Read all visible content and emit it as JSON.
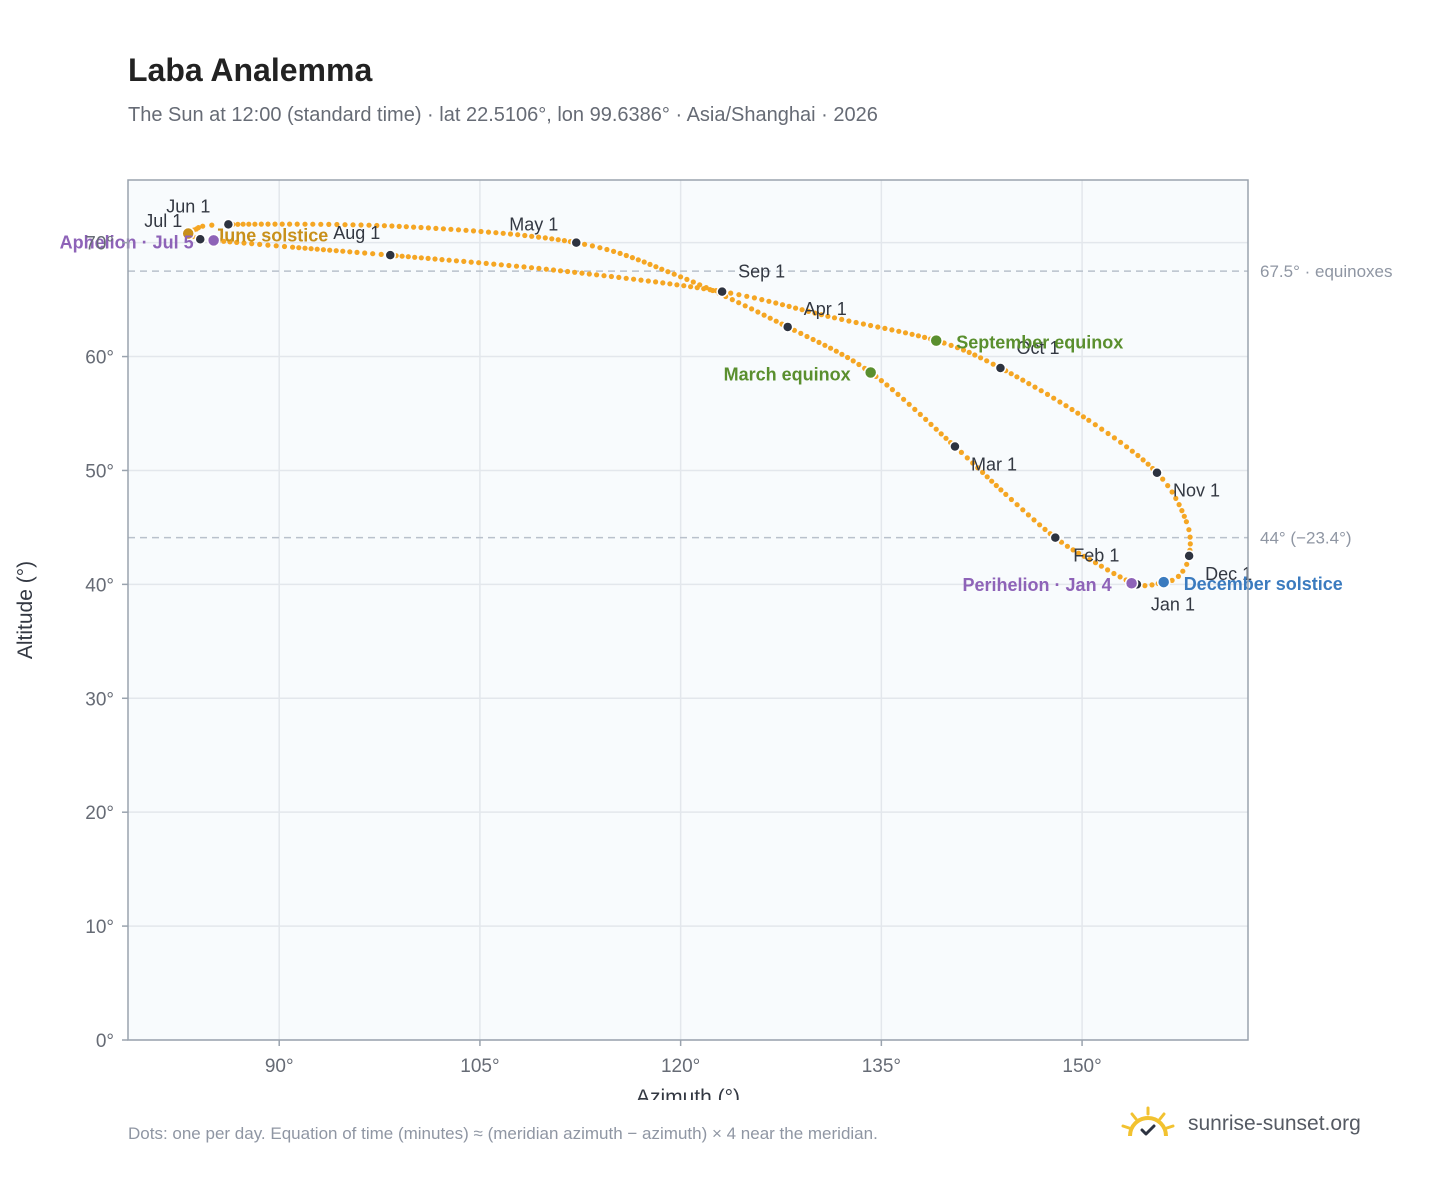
{
  "header": {
    "title": "Laba Analemma",
    "subtitle": "The Sun at 12:00 (standard time) · lat 22.5106°, lon 99.6386° · Asia/Shanghai · 2026"
  },
  "footer": {
    "note": "Dots: one per day. Equation of time (minutes) ≈ (meridian azimuth − azimuth) × 4 near the meridian.",
    "brand": "sunrise-sunset.org"
  },
  "colors": {
    "curve": "#f5a623",
    "month_dot": "#2d3340",
    "equinox": "#5a8f2e",
    "june_solstice": "#c8901a",
    "december_solstice": "#3b7bbf",
    "apsis": "#8e63b8",
    "reference_line": "#b9c1cc",
    "grid": "#e3e7ec",
    "plot_bg": "#f8fbfd",
    "frame": "#9aa3ae"
  },
  "chart_data": {
    "type": "scatter",
    "xlabel": "Azimuth (°)",
    "ylabel": "Altitude (°)",
    "xlim": [
      78.7,
      162.4
    ],
    "ylim": [
      0,
      75.5
    ],
    "xticks": [
      90,
      105,
      120,
      135,
      150
    ],
    "xtick_labels": [
      "90°",
      "105°",
      "120°",
      "135°",
      "150°"
    ],
    "yticks": [
      0,
      10,
      20,
      30,
      40,
      50,
      60,
      70
    ],
    "ytick_labels": [
      "0°",
      "10°",
      "20°",
      "30°",
      "40°",
      "50°",
      "60°",
      "70°"
    ],
    "grid": true,
    "reference_lines": [
      {
        "y": 67.5,
        "label": "67.5° · equinoxes"
      },
      {
        "y": 44.1,
        "label": "44° (−23.4°)"
      }
    ],
    "month_points": [
      {
        "label": "Jan 1",
        "x": 154.1,
        "y": 40.0
      },
      {
        "label": "Feb 1",
        "x": 148.0,
        "y": 44.1
      },
      {
        "label": "Mar 1",
        "x": 140.5,
        "y": 52.1
      },
      {
        "label": "Apr 1",
        "x": 128.0,
        "y": 62.6
      },
      {
        "label": "May 1",
        "x": 112.2,
        "y": 70.0
      },
      {
        "label": "Jun 1",
        "x": 86.2,
        "y": 71.6
      },
      {
        "label": "Jul 1",
        "x": 84.1,
        "y": 70.3
      },
      {
        "label": "Aug 1",
        "x": 98.3,
        "y": 68.9
      },
      {
        "label": "Sep 1",
        "x": 123.1,
        "y": 65.7
      },
      {
        "label": "Oct 1",
        "x": 143.9,
        "y": 59.0
      },
      {
        "label": "Nov 1",
        "x": 155.6,
        "y": 49.8
      },
      {
        "label": "Dec 1",
        "x": 158.0,
        "y": 42.5
      }
    ],
    "events": [
      {
        "label": "March equinox",
        "x": 134.2,
        "y": 58.6,
        "kind": "equinox"
      },
      {
        "label": "September equinox",
        "x": 139.1,
        "y": 61.4,
        "kind": "equinox"
      },
      {
        "label": "June solstice",
        "x": 83.2,
        "y": 70.8,
        "kind": "june_solstice"
      },
      {
        "label": "December solstice",
        "x": 156.1,
        "y": 40.2,
        "kind": "december_solstice"
      },
      {
        "label": "Aphelion · Jul 5",
        "x": 85.1,
        "y": 70.2,
        "kind": "apsis"
      },
      {
        "label": "Perihelion · Jan 4",
        "x": 153.7,
        "y": 40.1,
        "kind": "apsis"
      }
    ],
    "daily_curve": [
      {
        "x": 154.1,
        "y": 40.0
      },
      {
        "x": 151.0,
        "y": 41.9
      },
      {
        "x": 148.0,
        "y": 44.1
      },
      {
        "x": 144.3,
        "y": 47.9
      },
      {
        "x": 140.5,
        "y": 52.1
      },
      {
        "x": 134.2,
        "y": 58.6
      },
      {
        "x": 128.0,
        "y": 62.6
      },
      {
        "x": 120.0,
        "y": 67.0
      },
      {
        "x": 112.2,
        "y": 70.0
      },
      {
        "x": 99.5,
        "y": 71.4
      },
      {
        "x": 86.2,
        "y": 71.6
      },
      {
        "x": 83.6,
        "y": 71.1
      },
      {
        "x": 83.2,
        "y": 70.8
      },
      {
        "x": 84.1,
        "y": 70.3
      },
      {
        "x": 85.1,
        "y": 70.2
      },
      {
        "x": 91.0,
        "y": 69.6
      },
      {
        "x": 98.3,
        "y": 68.9
      },
      {
        "x": 110.5,
        "y": 67.6
      },
      {
        "x": 123.1,
        "y": 65.7
      },
      {
        "x": 131.5,
        "y": 63.4
      },
      {
        "x": 139.1,
        "y": 61.4
      },
      {
        "x": 143.9,
        "y": 59.0
      },
      {
        "x": 150.5,
        "y": 54.4
      },
      {
        "x": 155.6,
        "y": 49.8
      },
      {
        "x": 157.8,
        "y": 45.5
      },
      {
        "x": 158.0,
        "y": 42.5
      },
      {
        "x": 157.2,
        "y": 40.7
      },
      {
        "x": 156.1,
        "y": 40.2
      },
      {
        "x": 154.1,
        "y": 40.0
      }
    ]
  }
}
